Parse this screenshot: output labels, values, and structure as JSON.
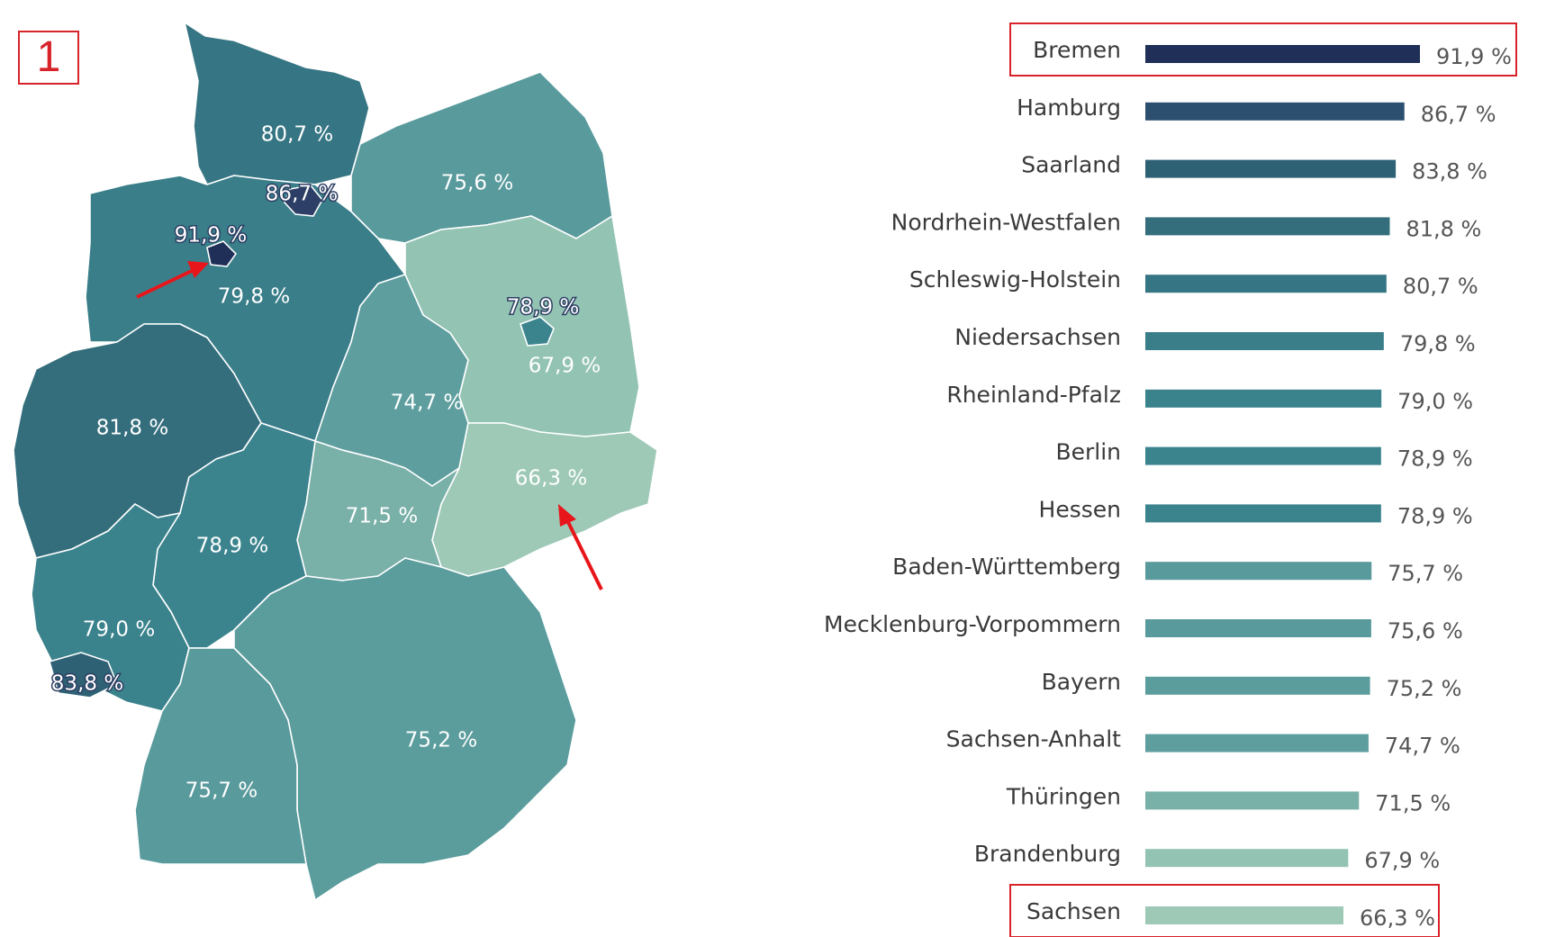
{
  "figure_number": "1",
  "colors": {
    "highlight": "#d8232a",
    "arrow": "#e8161b",
    "scale_dark": "#1f2f57",
    "scale_light": "#9ec9b7"
  },
  "chart_data": [
    {
      "type": "bar",
      "orientation": "horizontal",
      "categories": [
        "Bremen",
        "Hamburg",
        "Saarland",
        "Nordrhein-Westfalen",
        "Schleswig-Holstein",
        "Niedersachsen",
        "Rheinland-Pfalz",
        "Berlin",
        "Hessen",
        "Baden-Württemberg",
        "Mecklenburg-Vorpommern",
        "Bayern",
        "Sachsen-Anhalt",
        "Thüringen",
        "Brandenburg",
        "Sachsen"
      ],
      "values": [
        91.9,
        86.7,
        83.8,
        81.8,
        80.7,
        79.8,
        79.0,
        78.9,
        78.9,
        75.7,
        75.6,
        75.2,
        74.7,
        71.5,
        67.9,
        66.3
      ],
      "value_labels": [
        "91,9 %",
        "86,7 %",
        "83,8 %",
        "81,8 %",
        "80,7 %",
        "79,8 %",
        "79,0 %",
        "78,9 %",
        "78,9 %",
        "75,7 %",
        "75,6 %",
        "75,2 %",
        "74,7 %",
        "71,5 %",
        "67,9 %",
        "66,3 %"
      ],
      "bar_colors": [
        "#1f2f57",
        "#2d4f6f",
        "#2f6175",
        "#346e7d",
        "#367583",
        "#397e89",
        "#3a828c",
        "#3b848e",
        "#3b848e",
        "#599a9c",
        "#599a9c",
        "#5b9c9d",
        "#5e9e9f",
        "#79b0a8",
        "#93c3b3",
        "#9ec9b7"
      ],
      "highlighted": [
        "Bremen",
        "Sachsen"
      ],
      "xlim": [
        0,
        100
      ],
      "title": "",
      "xlabel": "",
      "ylabel": ""
    },
    {
      "type": "choropleth",
      "regions": [
        {
          "name": "Schleswig-Holstein",
          "value_label": "80,7 %",
          "color": "#367583"
        },
        {
          "name": "Hamburg",
          "value_label": "86,7 %",
          "color": "#2d3f66"
        },
        {
          "name": "Mecklenburg-Vorpommern",
          "value_label": "75,6 %",
          "color": "#599a9c"
        },
        {
          "name": "Bremen",
          "value_label": "91,9 %",
          "color": "#1f2f57"
        },
        {
          "name": "Niedersachsen",
          "value_label": "79,8 %",
          "color": "#397e89"
        },
        {
          "name": "Berlin",
          "value_label": "78,9 %",
          "color": "#3b848e"
        },
        {
          "name": "Brandenburg",
          "value_label": "67,9 %",
          "color": "#93c3b3"
        },
        {
          "name": "Nordrhein-Westfalen",
          "value_label": "81,8 %",
          "color": "#346e7d"
        },
        {
          "name": "Sachsen-Anhalt",
          "value_label": "74,7 %",
          "color": "#5e9e9f"
        },
        {
          "name": "Sachsen",
          "value_label": "66,3 %",
          "color": "#9ec9b7"
        },
        {
          "name": "Thüringen",
          "value_label": "71,5 %",
          "color": "#79b0a8"
        },
        {
          "name": "Hessen",
          "value_label": "78,9 %",
          "color": "#3b848e"
        },
        {
          "name": "Rheinland-Pfalz",
          "value_label": "79,0 %",
          "color": "#3a828c"
        },
        {
          "name": "Saarland",
          "value_label": "83,8 %",
          "color": "#2f6175"
        },
        {
          "name": "Bayern",
          "value_label": "75,2 %",
          "color": "#5b9c9d"
        },
        {
          "name": "Baden-Württemberg",
          "value_label": "75,7 %",
          "color": "#599a9c"
        }
      ],
      "arrows_point_to": [
        "Bremen",
        "Sachsen"
      ]
    }
  ]
}
